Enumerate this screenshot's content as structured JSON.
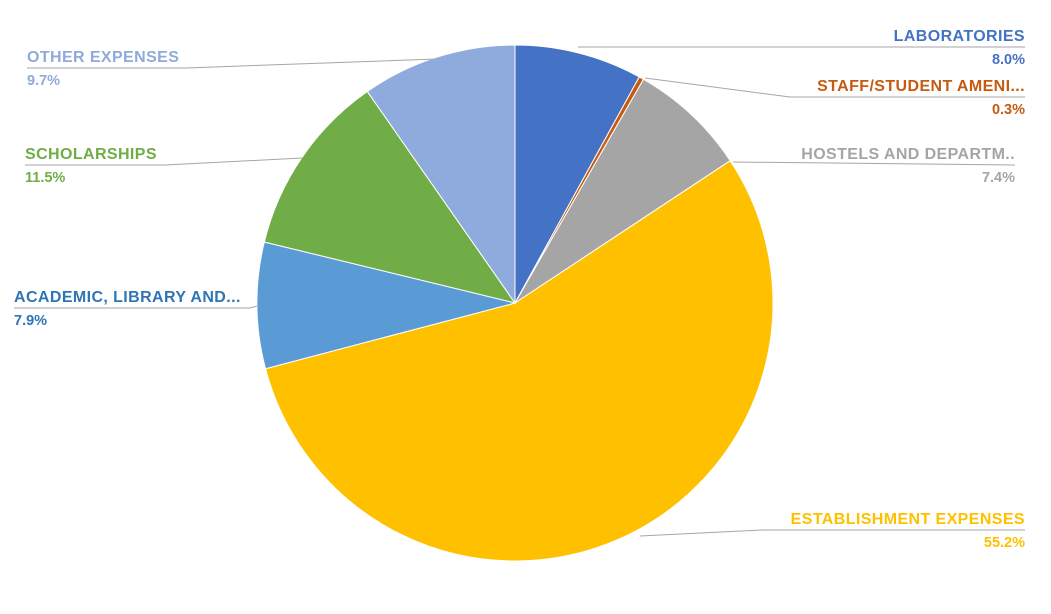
{
  "chart_data": {
    "type": "pie",
    "title": "",
    "legend_position": "none",
    "start_angle_deg": 0,
    "direction": "clockwise",
    "background": "#FFFFFF",
    "leader_line_color": "#A6A6A6",
    "slices": [
      {
        "label": "LABORATORIES",
        "value": 8.0,
        "display": "8.0%",
        "color": "#4472C4",
        "label_color": "#4472C4"
      },
      {
        "label": "STAFF/STUDENT AMENI...",
        "value": 0.3,
        "display": "0.3%",
        "color": "#C55A11",
        "label_color": "#C55A11"
      },
      {
        "label": "HOSTELS AND DEPARTM..",
        "value": 7.4,
        "display": "7.4%",
        "color": "#A5A5A5",
        "label_color": "#A5A5A5"
      },
      {
        "label": "ESTABLISHMENT EXPENSES",
        "value": 55.2,
        "display": "55.2%",
        "color": "#FFC000",
        "label_color": "#FFC000"
      },
      {
        "label": "ACADEMIC, LIBRARY AND...",
        "value": 7.9,
        "display": "7.9%",
        "color": "#5B9BD5",
        "label_color": "#2E75B6"
      },
      {
        "label": "SCHOLARSHIPS",
        "value": 11.5,
        "display": "11.5%",
        "color": "#70AD47",
        "label_color": "#70AD47"
      },
      {
        "label": "OTHER EXPENSES",
        "value": 9.7,
        "display": "9.7%",
        "color": "#8FAADC",
        "label_color": "#8FAADC"
      }
    ]
  }
}
